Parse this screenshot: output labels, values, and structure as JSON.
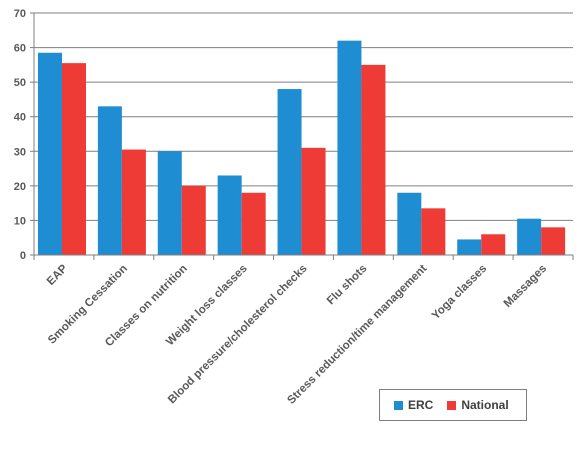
{
  "chart_data": {
    "type": "bar",
    "categories": [
      "EAP",
      "Smoking Cessation",
      "Classes on nutrition",
      "Weight loss classes",
      "Blood pressure/cholesterol  checks",
      "Flu shots",
      "Stress reduction/time  management",
      "Yoga classes",
      "Massages"
    ],
    "series": [
      {
        "name": "ERC",
        "color": "#1f8dd1",
        "values": [
          58.5,
          43,
          30,
          23,
          48,
          62,
          18,
          4.5,
          10.5
        ]
      },
      {
        "name": "National",
        "color": "#ef3b36",
        "values": [
          55.5,
          30.5,
          20,
          18,
          31,
          55,
          13.5,
          6,
          8
        ]
      }
    ],
    "ylim": [
      0,
      70
    ],
    "yticks": [
      "0",
      "10",
      "20",
      "30",
      "40",
      "50",
      "60",
      "70"
    ],
    "grid": true,
    "legend_position": "bottom-right",
    "title": "",
    "xlabel": "",
    "ylabel": ""
  }
}
